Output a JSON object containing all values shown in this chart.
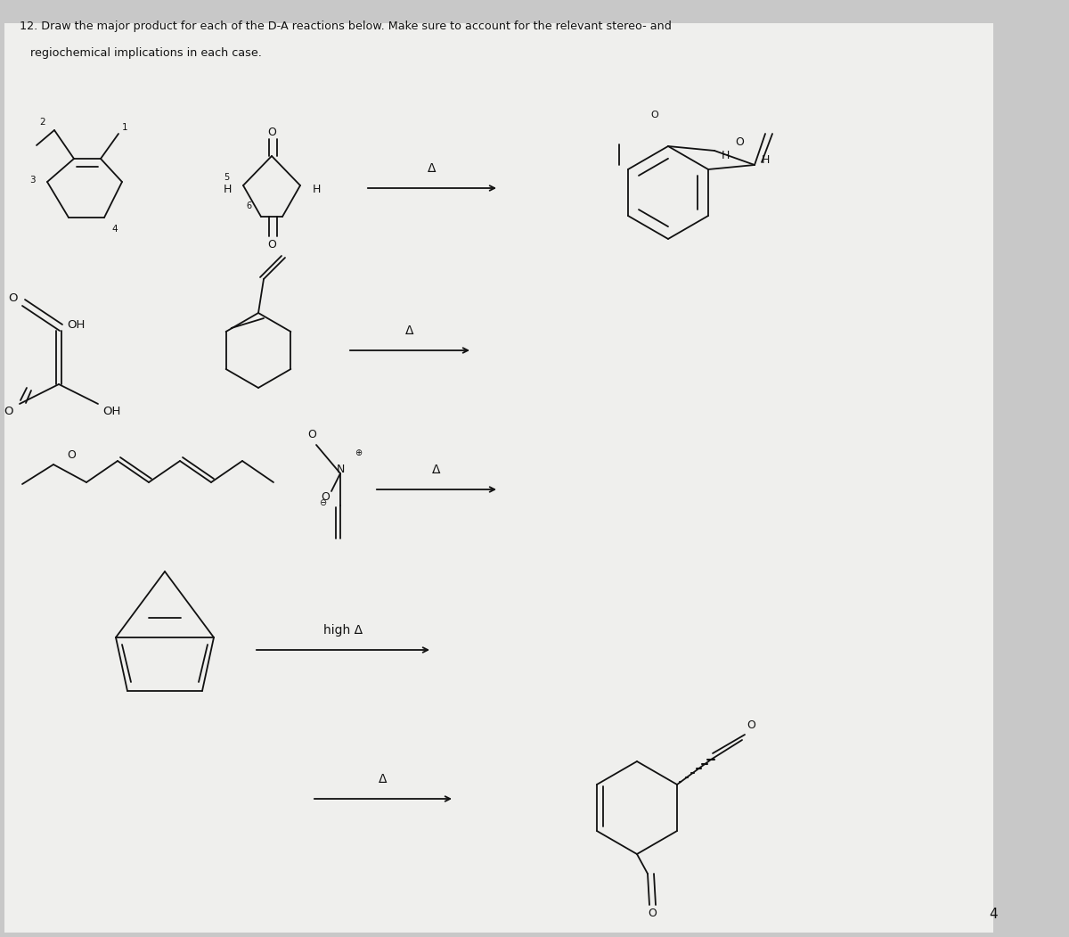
{
  "bg_color": "#c8c8c8",
  "paper_color": "#efefed",
  "text_color": "#111111",
  "title_line1": "12. Draw the major product for each of the D-A reactions below. Make sure to account for the relevant stereo- and",
  "title_line2": "   regiochemical implications in each case.",
  "delta": "Δ",
  "high_delta": "high Δ",
  "page_num": "4",
  "lw": 1.3
}
